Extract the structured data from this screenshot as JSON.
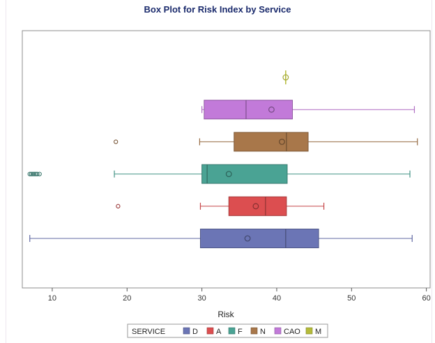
{
  "chart_data": {
    "type": "boxplot",
    "orientation": "horizontal",
    "title": "Box Plot for Risk Index by Service",
    "xlabel": "Risk",
    "xlim": [
      6,
      60.5
    ],
    "xticks": [
      10,
      20,
      30,
      40,
      50,
      60
    ],
    "grid": false,
    "legend": {
      "title": "SERVICE",
      "placement": "bottom"
    },
    "series": [
      {
        "name": "D",
        "color": "#6b75b5",
        "min": 7.0,
        "q1": 29.8,
        "median": 41.2,
        "q3": 45.6,
        "max": 58.1,
        "mean": 36.1,
        "outliers": []
      },
      {
        "name": "A",
        "color": "#dc4e50",
        "min": 29.8,
        "q1": 33.6,
        "median": 38.5,
        "q3": 41.3,
        "max": 46.3,
        "mean": 37.2,
        "outliers": [
          18.8
        ]
      },
      {
        "name": "F",
        "color": "#4aa394",
        "min": 18.3,
        "q1": 30.0,
        "median": 30.7,
        "q3": 41.4,
        "max": 57.8,
        "mean": 33.6,
        "outliers": [
          7.0,
          7.2,
          7.4,
          7.6,
          7.8,
          8.0,
          8.3
        ]
      },
      {
        "name": "N",
        "color": "#a8774a",
        "min": 29.7,
        "q1": 34.3,
        "median": 41.3,
        "q3": 44.2,
        "max": 58.8,
        "mean": 40.7,
        "outliers": [
          18.5
        ]
      },
      {
        "name": "CAO",
        "color": "#c27ad9",
        "min": 30.0,
        "q1": 30.3,
        "median": 35.9,
        "q3": 42.1,
        "max": 58.4,
        "mean": 39.3,
        "outliers": []
      },
      {
        "name": "M",
        "color": "#b5bb3a",
        "min": 41.2,
        "q1": 41.2,
        "median": 41.2,
        "q3": 41.2,
        "max": 41.2,
        "mean": 41.2,
        "outliers": []
      }
    ]
  }
}
